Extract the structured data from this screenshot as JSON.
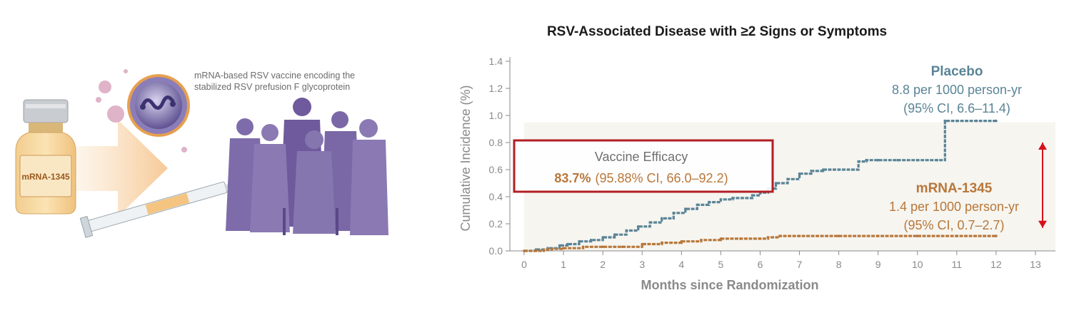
{
  "illustration": {
    "caption_line1": "mRNA-based RSV vaccine encoding the",
    "caption_line2": "stabilized RSV prefusion F glycoprotein",
    "vial_label": "mRNA-1345"
  },
  "colors": {
    "placebo": "#5a8496",
    "vaccine": "#b8773a",
    "efficacy_box_border": "#b21e24",
    "efficacy_arrow": "#d6111b",
    "axis": "#8a8a8a",
    "people": "#6e5a9c",
    "plot_bg": "#f6f5f0"
  },
  "chart_data": {
    "type": "line",
    "title": "RSV-Associated Disease with ≥2 Signs or Symptoms",
    "xlabel": "Months since Randomization",
    "ylabel": "Cumulative Incidence (%)",
    "xlim": [
      0,
      13
    ],
    "ylim": [
      0,
      1.4
    ],
    "x_ticks": [
      "0",
      "1",
      "2",
      "3",
      "4",
      "5",
      "6",
      "7",
      "8",
      "9",
      "10",
      "11",
      "12",
      "13"
    ],
    "y_ticks": [
      "0.0",
      "0.2",
      "0.4",
      "0.6",
      "0.8",
      "1.0",
      "1.2",
      "1.4"
    ],
    "series": [
      {
        "name": "Placebo",
        "rate": "8.8 per 1000 person-yr",
        "ci": "(95% CI, 6.6–11.4)",
        "x": [
          0,
          0.3,
          0.6,
          0.9,
          1.1,
          1.4,
          1.7,
          2.0,
          2.3,
          2.6,
          2.9,
          3.2,
          3.5,
          3.8,
          4.1,
          4.4,
          4.7,
          5.0,
          5.3,
          5.8,
          6.0,
          6.2,
          6.4,
          6.7,
          7.0,
          7.3,
          7.6,
          8.0,
          8.5,
          8.7,
          9.0,
          9.5,
          10.0,
          10.5,
          10.7,
          11.0,
          11.5,
          12.0
        ],
        "y": [
          0,
          0.01,
          0.02,
          0.04,
          0.05,
          0.07,
          0.08,
          0.1,
          0.12,
          0.15,
          0.18,
          0.21,
          0.24,
          0.28,
          0.31,
          0.34,
          0.36,
          0.38,
          0.39,
          0.41,
          0.43,
          0.46,
          0.5,
          0.53,
          0.57,
          0.59,
          0.6,
          0.6,
          0.66,
          0.67,
          0.67,
          0.67,
          0.67,
          0.67,
          0.96,
          0.96,
          0.96,
          0.96
        ]
      },
      {
        "name": "mRNA-1345",
        "rate": "1.4 per 1000 person-yr",
        "ci": "(95% CI, 0.7–2.7)",
        "x": [
          0,
          0.5,
          0.7,
          1.0,
          1.5,
          2.0,
          2.5,
          3.0,
          3.5,
          4.0,
          4.5,
          5.0,
          5.5,
          6.0,
          6.2,
          6.5,
          7.0,
          8.0,
          9.0,
          10.0,
          11.0,
          12.0
        ],
        "y": [
          0,
          0.01,
          0.015,
          0.02,
          0.03,
          0.03,
          0.03,
          0.05,
          0.06,
          0.07,
          0.08,
          0.09,
          0.09,
          0.09,
          0.1,
          0.11,
          0.11,
          0.11,
          0.11,
          0.11,
          0.11,
          0.11
        ]
      }
    ],
    "annotation": {
      "title": "Vaccine Efficacy",
      "value": "83.7%",
      "ci": "(95.88% CI, 66.0–92.2)"
    },
    "grid": false,
    "legend": "inline labels"
  }
}
